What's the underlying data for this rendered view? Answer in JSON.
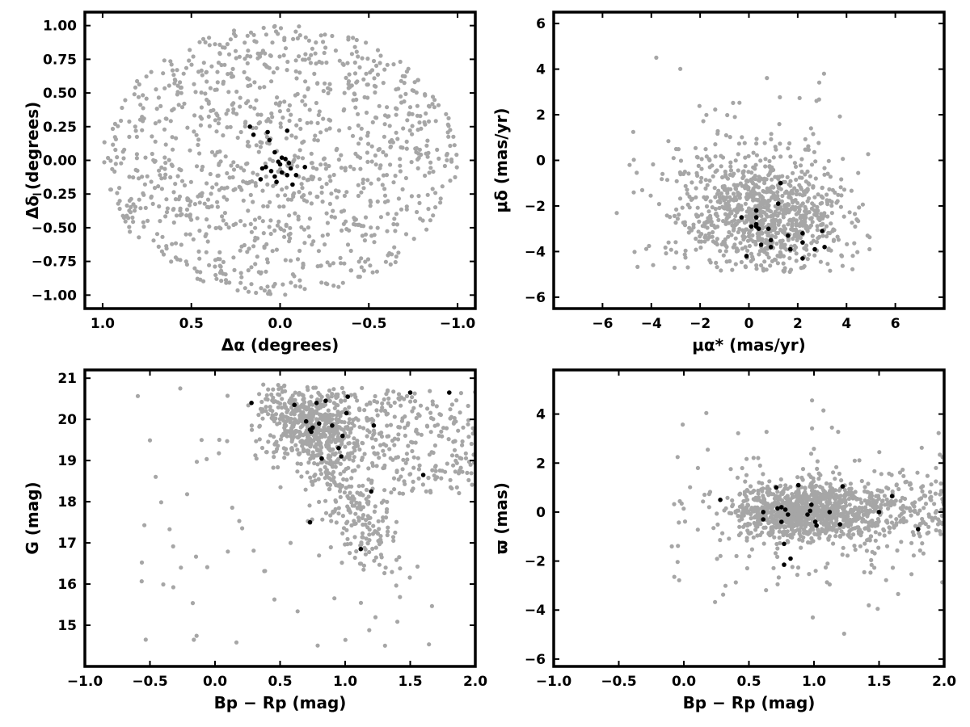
{
  "colors": {
    "field": "#a6a6a6",
    "member": "#000000",
    "frame": "#000000"
  },
  "chart_data": [
    {
      "type": "scatter",
      "panel": "sky-position",
      "xlabel": "Δα (degrees)",
      "ylabel": "Δδ (degrees)",
      "xlim": [
        1.1,
        -1.1
      ],
      "ylim": [
        -1.1,
        1.1
      ],
      "x_inverted": true,
      "xticks": [
        1.0,
        0.5,
        0.0,
        -0.5,
        -1.0
      ],
      "xtick_labels": [
        "1.0",
        "0.5",
        "0.0",
        "−0.5",
        "−1.0"
      ],
      "yticks": [
        1.0,
        0.75,
        0.5,
        0.25,
        0.0,
        -0.25,
        -0.5,
        -0.75,
        -1.0
      ],
      "ytick_labels": [
        "1.00",
        "0.75",
        "0.50",
        "0.25",
        "0.00",
        "−0.25",
        "−0.50",
        "−0.75",
        "−1.00"
      ],
      "grid": false,
      "series": [
        {
          "role": "field",
          "color": "#a6a6a6",
          "distribution": "uniform disk",
          "center": [
            0,
            0
          ],
          "radius": 1.0,
          "n": 1100
        },
        {
          "role": "members",
          "color": "#000000",
          "points": [
            [
              0.17,
              0.25
            ],
            [
              0.15,
              0.19
            ],
            [
              0.07,
              0.21
            ],
            [
              0.06,
              0.15
            ],
            [
              0.03,
              0.06
            ],
            [
              -0.01,
              0.02
            ],
            [
              -0.04,
              0.22
            ],
            [
              0.08,
              -0.05
            ],
            [
              0.05,
              -0.08
            ],
            [
              0.03,
              -0.12
            ],
            [
              0.02,
              -0.16
            ],
            [
              -0.01,
              -0.09
            ],
            [
              -0.04,
              -0.11
            ],
            [
              -0.06,
              -0.06
            ],
            [
              -0.09,
              -0.11
            ],
            [
              -0.14,
              -0.05
            ],
            [
              -0.05,
              -0.02
            ],
            [
              0.0,
              -0.03
            ],
            [
              0.01,
              -0.01
            ],
            [
              -0.03,
              0.01
            ],
            [
              -0.07,
              -0.18
            ],
            [
              0.11,
              -0.14
            ],
            [
              0.1,
              -0.06
            ]
          ]
        }
      ]
    },
    {
      "type": "scatter",
      "panel": "proper-motion",
      "xlabel": "μα* (mas/yr)",
      "ylabel": "μδ (mas/yr)",
      "xlim": [
        -8,
        8
      ],
      "ylim": [
        -6.5,
        6.5
      ],
      "xticks": [
        -6,
        -4,
        -2,
        0,
        2,
        4,
        6
      ],
      "xtick_labels": [
        "−6",
        "−4",
        "−2",
        "0",
        "2",
        "4",
        "6"
      ],
      "yticks": [
        6,
        4,
        2,
        0,
        -2,
        -4,
        -6
      ],
      "ytick_labels": [
        "6",
        "4",
        "2",
        "0",
        "−2",
        "−4",
        "−6"
      ],
      "grid": false,
      "series": [
        {
          "role": "field",
          "color": "#a6a6a6",
          "distribution": "dense core plus halo",
          "core_center": [
            0.6,
            -2.5
          ],
          "core_spread": [
            1.6,
            1.2
          ],
          "halo_spread": [
            2.5,
            2.0
          ],
          "n_core": 800,
          "n_halo": 200
        },
        {
          "role": "members",
          "color": "#000000",
          "points": [
            [
              1.3,
              -1.0
            ],
            [
              1.2,
              -1.9
            ],
            [
              0.3,
              -2.2
            ],
            [
              0.3,
              -2.5
            ],
            [
              0.3,
              -2.8
            ],
            [
              0.1,
              -2.9
            ],
            [
              0.3,
              -2.9
            ],
            [
              -0.3,
              -2.5
            ],
            [
              0.8,
              -3.0
            ],
            [
              0.4,
              -3.0
            ],
            [
              2.2,
              -3.2
            ],
            [
              1.6,
              -3.3
            ],
            [
              3.0,
              -3.1
            ],
            [
              0.9,
              -3.5
            ],
            [
              0.5,
              -3.7
            ],
            [
              0.9,
              -3.8
            ],
            [
              2.2,
              -3.6
            ],
            [
              3.1,
              -3.8
            ],
            [
              1.7,
              -3.9
            ],
            [
              2.7,
              -3.9
            ],
            [
              -0.1,
              -4.2
            ],
            [
              2.2,
              -4.3
            ]
          ]
        }
      ]
    },
    {
      "type": "scatter",
      "panel": "cmd",
      "xlabel": "Bp − Rp (mag)",
      "ylabel": "G (mag)",
      "xlim": [
        -1.0,
        2.0
      ],
      "ylim": [
        14.0,
        21.2
      ],
      "y_inverted_display": false,
      "xticks": [
        -1.0,
        -0.5,
        0.0,
        0.5,
        1.0,
        1.5,
        2.0
      ],
      "xtick_labels": [
        "−1.0",
        "−0.5",
        "0.0",
        "0.5",
        "1.0",
        "1.5",
        "2.0"
      ],
      "yticks": [
        21,
        20,
        19,
        18,
        17,
        16,
        15
      ],
      "ytick_labels": [
        "21",
        "20",
        "19",
        "18",
        "17",
        "16",
        "15"
      ],
      "grid": false,
      "series": [
        {
          "role": "field",
          "color": "#a6a6a6",
          "distribution": "faint clump and diagonal sequence",
          "n": 1100
        },
        {
          "role": "members",
          "color": "#000000",
          "points": [
            [
              0.28,
              20.4
            ],
            [
              0.61,
              20.35
            ],
            [
              0.78,
              20.4
            ],
            [
              0.85,
              20.45
            ],
            [
              1.02,
              20.55
            ],
            [
              1.5,
              20.65
            ],
            [
              1.8,
              20.65
            ],
            [
              1.01,
              20.15
            ],
            [
              0.7,
              19.95
            ],
            [
              0.8,
              19.9
            ],
            [
              0.73,
              19.75
            ],
            [
              0.75,
              19.8
            ],
            [
              0.74,
              19.7
            ],
            [
              0.9,
              19.85
            ],
            [
              1.22,
              19.85
            ],
            [
              0.98,
              19.6
            ],
            [
              0.95,
              19.3
            ],
            [
              0.97,
              19.1
            ],
            [
              0.82,
              19.05
            ],
            [
              1.6,
              18.65
            ],
            [
              1.2,
              18.25
            ],
            [
              0.73,
              17.5
            ],
            [
              1.12,
              16.85
            ]
          ]
        }
      ]
    },
    {
      "type": "scatter",
      "panel": "parallax-color",
      "xlabel": "Bp − Rp (mag)",
      "ylabel": "ϖ (mas)",
      "xlim": [
        -1.0,
        2.0
      ],
      "ylim": [
        -6.3,
        5.8
      ],
      "xticks": [
        -1.0,
        -0.5,
        0.0,
        0.5,
        1.0,
        1.5,
        2.0
      ],
      "xtick_labels": [
        "−1.0",
        "−0.5",
        "0.0",
        "0.5",
        "1.0",
        "1.5",
        "2.0"
      ],
      "yticks": [
        4,
        2,
        0,
        -2,
        -4,
        -6
      ],
      "ytick_labels": [
        "4",
        "2",
        "0",
        "−2",
        "−4",
        "−6"
      ],
      "grid": false,
      "series": [
        {
          "role": "field",
          "color": "#a6a6a6",
          "distribution": "horizontal band at zero",
          "n": 1300
        },
        {
          "role": "members",
          "color": "#000000",
          "points": [
            [
              0.28,
              0.5
            ],
            [
              0.61,
              0.0
            ],
            [
              0.61,
              -0.3
            ],
            [
              0.71,
              1.0
            ],
            [
              0.72,
              0.15
            ],
            [
              0.75,
              0.2
            ],
            [
              0.78,
              0.1
            ],
            [
              0.8,
              -0.1
            ],
            [
              0.75,
              -0.4
            ],
            [
              0.77,
              -1.3
            ],
            [
              0.82,
              -1.9
            ],
            [
              0.77,
              -2.15
            ],
            [
              0.88,
              1.1
            ],
            [
              0.95,
              -0.1
            ],
            [
              0.97,
              0.05
            ],
            [
              0.98,
              0.3
            ],
            [
              1.01,
              -0.4
            ],
            [
              1.02,
              -0.55
            ],
            [
              1.12,
              0.0
            ],
            [
              1.2,
              -0.5
            ],
            [
              1.22,
              1.05
            ],
            [
              1.5,
              0.0
            ],
            [
              1.6,
              0.65
            ],
            [
              1.8,
              -0.7
            ]
          ]
        }
      ]
    }
  ]
}
